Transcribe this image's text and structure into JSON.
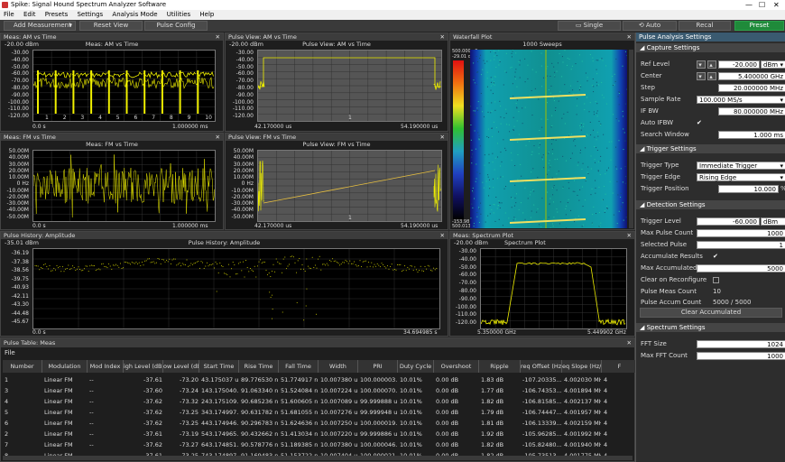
{
  "window": {
    "title": "Spike: Signal Hound Spectrum Analyzer Software",
    "min": "—",
    "max": "☐",
    "close": "✕"
  },
  "menu": [
    "File",
    "Edit",
    "Presets",
    "Settings",
    "Analysis Mode",
    "Utilities",
    "Help"
  ],
  "toolbar": {
    "add_measurement": "Add Measurement",
    "reset_view": "Reset View",
    "pulse_config": "Pulse Config",
    "single": "Single",
    "auto": "Auto",
    "recal": "Recal",
    "preset": "Preset"
  },
  "panels": {
    "am_meas": {
      "header": "Meas: AM vs Time",
      "title": "Meas: AM vs Time",
      "ref": "-20.00 dBm",
      "y": [
        "-30.00",
        "-40.00",
        "-50.00",
        "-60.00",
        "-70.00",
        "-80.00",
        "-90.00",
        "-100.00",
        "-110.00",
        "-120.00"
      ],
      "x_start": "0.0 s",
      "x_end": "1.000000 ms",
      "markers": [
        "1",
        "2",
        "3",
        "4",
        "5",
        "6",
        "7",
        "8",
        "9",
        "10"
      ]
    },
    "am_pulse": {
      "header": "Pulse View: AM vs Time",
      "title": "Pulse View: AM vs Time",
      "ref": "-20.00 dBm",
      "y": [
        "-30.00",
        "-40.00",
        "-50.00",
        "-60.00",
        "-70.00",
        "-80.00",
        "-90.00",
        "-100.00",
        "-110.00",
        "-120.00"
      ],
      "x_start": "42.170000 us",
      "x_end": "54.190000 us",
      "marker": "1"
    },
    "fm_meas": {
      "header": "Meas: FM vs Time",
      "title": "Meas: FM vs Time",
      "ref": "",
      "y": [
        "50.00M",
        "40.00M",
        "30.00M",
        "20.00M",
        "10.00M",
        "0 Hz",
        "-10.00M",
        "-20.00M",
        "-30.00M",
        "-40.00M",
        "-50.00M"
      ],
      "x_start": "0.0 s",
      "x_end": "1.000000 ms"
    },
    "fm_pulse": {
      "header": "Pulse View: FM vs Time",
      "title": "Pulse View: FM vs Time",
      "ref": "",
      "y": [
        "50.00M",
        "40.00M",
        "30.00M",
        "20.00M",
        "10.00M",
        "0 Hz",
        "-10.00M",
        "-20.00M",
        "-30.00M",
        "-40.00M",
        "-50.00M"
      ],
      "x_start": "42.170000 us",
      "x_end": "54.190000 us",
      "marker": "1"
    },
    "waterfall": {
      "header": "Waterfall Plot",
      "title": "1000 Sweeps",
      "top1": "500.000 uS",
      "top2": "-29.01 dBm",
      "bot1": "-153.98 dBm",
      "bot2": "500.013 uS"
    },
    "history": {
      "header": "Pulse History: Amplitude",
      "title": "Pulse History: Amplitude",
      "ref": "-35.01 dBm",
      "y": [
        "-36.19",
        "-37.38",
        "-38.56",
        "-39.75",
        "-40.93",
        "-42.11",
        "-43.30",
        "-44.48",
        "-45.67"
      ],
      "x_start": "0.0 s",
      "x_end": "34.694985 s"
    },
    "spectrum": {
      "header": "Meas: Spectrum Plot",
      "title": "Spectrum Plot",
      "ref": "-20.00 dBm",
      "y": [
        "-30.00",
        "-40.00",
        "-50.00",
        "-60.00",
        "-70.00",
        "-80.00",
        "-90.00",
        "-100.00",
        "-110.00",
        "-120.00"
      ],
      "x_start": "5.350000 GHz",
      "x_end": "5.449902 GHz"
    }
  },
  "settings": {
    "header": "Pulse Analysis Settings",
    "capture": {
      "title": "Capture Settings",
      "ref_level_label": "Ref Level",
      "ref_level": "-20.000",
      "ref_unit": "dBm",
      "center_label": "Center",
      "center": "5.400000 GHz",
      "step_label": "Step",
      "step": "20.000000 MHz",
      "sample_rate_label": "Sample Rate",
      "sample_rate": "100.000 MS/s",
      "if_bw_label": "IF BW",
      "if_bw": "80.000000 MHz",
      "auto_ifbw_label": "Auto IFBW",
      "search_window_label": "Search Window",
      "search_window": "1.000 ms"
    },
    "trigger": {
      "title": "Trigger Settings",
      "type_label": "Trigger Type",
      "type": "Immediate Trigger",
      "edge_label": "Trigger Edge",
      "edge": "Rising Edge",
      "pos_label": "Trigger Position",
      "pos": "10.000",
      "pos_unit": "%"
    },
    "detection": {
      "title": "Detection Settings",
      "level_label": "Trigger Level",
      "level": "-60.000",
      "level_unit": "dBm",
      "max_pulse_label": "Max Pulse Count",
      "max_pulse": "1000",
      "selected_label": "Selected Pulse",
      "selected": "1",
      "accum_label": "Accumulate Results",
      "max_accum_label": "Max Accumulated",
      "max_accum": "5000",
      "clear_reconf_label": "Clear on Reconfigure",
      "meas_count_label": "Pulse Meas Count",
      "meas_count": "10",
      "accum_count_label": "Pulse Accum Count",
      "accum_count": "5000 / 5000",
      "clear_btn": "Clear Accumulated"
    },
    "spectrum": {
      "title": "Spectrum Settings",
      "fft_size_label": "FFT Size",
      "fft_size": "1024",
      "max_fft_label": "Max FFT Count",
      "max_fft": "1000"
    }
  },
  "table": {
    "header": "Pulse Table: Meas",
    "file": "File",
    "columns": [
      "Number",
      "Modulation",
      "Mod Index",
      "igh Level (dBm",
      "ow Level (dBm",
      "Start Time",
      "Rise Time",
      "Fall Time",
      "Width",
      "PRI",
      "Duty Cycle",
      "Overshoot",
      "Ripple",
      "req Offset (Hz/s",
      "eq Slope (Hz/s",
      "F"
    ],
    "rows": [
      [
        "1",
        "Linear FM",
        "--",
        "-37.61",
        "-73.20",
        "43.175037 us",
        "89.776530 ns",
        "51.774917 ns",
        "10.007380 us",
        "100.000003...",
        "10.01%",
        "0.00 dB",
        "1.83 dB",
        "-107.20335...",
        "4.002030 MHz",
        "4"
      ],
      [
        "3",
        "Linear FM",
        "--",
        "-37.60",
        "-73.24",
        "143.175040...",
        "91.063340 ns",
        "51.524084 ns",
        "10.007224 us",
        "100.000070...",
        "10.01%",
        "0.00 dB",
        "1.77 dB",
        "-106.74353...",
        "4.001894 MHz",
        "4"
      ],
      [
        "4",
        "Linear FM",
        "--",
        "-37.62",
        "-73.32",
        "243.175109...",
        "90.685236 ns",
        "51.600605 ns",
        "10.007089 us",
        "99.999888 us",
        "10.01%",
        "0.00 dB",
        "1.82 dB",
        "-106.81585...",
        "4.002137 MHz",
        "4"
      ],
      [
        "5",
        "Linear FM",
        "--",
        "-37.62",
        "-73.25",
        "343.174997...",
        "90.631782 ns",
        "51.681055 ns",
        "10.007276 us",
        "99.999948 us",
        "10.01%",
        "0.00 dB",
        "1.79 dB",
        "-106.74447...",
        "4.001957 MHz",
        "4"
      ],
      [
        "6",
        "Linear FM",
        "--",
        "-37.62",
        "-73.25",
        "443.174946...",
        "90.296783 ns",
        "51.624636 ns",
        "10.007250 us",
        "100.000019...",
        "10.01%",
        "0.00 dB",
        "1.81 dB",
        "-106.13339...",
        "4.002159 MHz",
        "4"
      ],
      [
        "2",
        "Linear FM",
        "--",
        "-37.61",
        "-73.19",
        "543.174965...",
        "90.432662 ns",
        "51.413034 ns",
        "10.007220 us",
        "99.999886 us",
        "10.01%",
        "0.00 dB",
        "1.92 dB",
        "-105.96285...",
        "4.001992 MHz",
        "4"
      ],
      [
        "7",
        "Linear FM",
        "--",
        "-37.62",
        "-73.27",
        "643.174851...",
        "90.578776 ns",
        "51.189385 ns",
        "10.007380 us",
        "100.000046...",
        "10.01%",
        "0.00 dB",
        "1.82 dB",
        "-105.82480...",
        "4.001940 MHz",
        "4"
      ],
      [
        "8",
        "Linear FM",
        "--",
        "-37.61",
        "-73.25",
        "743.174897...",
        "91.169483 ns",
        "51.153722 ns",
        "10.007404 us",
        "100.000021...",
        "10.01%",
        "0.00 dB",
        "1.82 dB",
        "-105.73513...",
        "4.001775 MHz",
        "4"
      ]
    ]
  }
}
